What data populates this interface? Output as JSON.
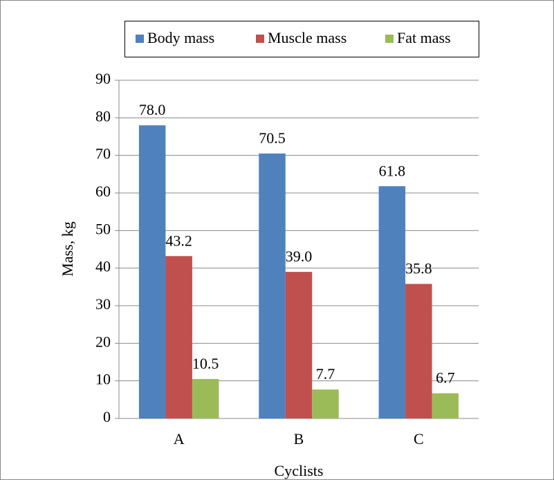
{
  "chart_data": {
    "type": "bar",
    "x_label": "Cyclists",
    "y_label": "Mass, kg",
    "categories": [
      "A",
      "B",
      "C"
    ],
    "series": [
      {
        "name": "Body mass",
        "color": "#4f81bd",
        "values": [
          78.0,
          70.5,
          61.8
        ],
        "value_labels": [
          "78.0",
          "70.5",
          "61.8"
        ]
      },
      {
        "name": "Muscle mass",
        "color": "#c0504d",
        "values": [
          43.2,
          39.0,
          35.8
        ],
        "value_labels": [
          "43.2",
          "39.0",
          "35.8"
        ]
      },
      {
        "name": "Fat mass",
        "color": "#9bbb59",
        "values": [
          10.5,
          7.7,
          6.7
        ],
        "value_labels": [
          "10.5",
          "7.7",
          "6.7"
        ]
      }
    ],
    "ylim": [
      0,
      90
    ],
    "yticks": [
      0,
      10,
      20,
      30,
      40,
      50,
      60,
      70,
      80,
      90
    ],
    "grid": true,
    "legend": "top"
  }
}
